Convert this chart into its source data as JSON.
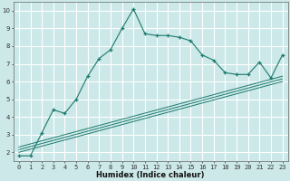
{
  "xlabel": "Humidex (Indice chaleur)",
  "background_color": "#cce8e8",
  "grid_color": "#ffffff",
  "line_color": "#1a7a6e",
  "x_data": [
    0,
    1,
    2,
    3,
    4,
    5,
    6,
    7,
    8,
    9,
    10,
    11,
    12,
    13,
    14,
    15,
    16,
    17,
    18,
    19,
    20,
    21,
    22,
    23
  ],
  "line1_y": [
    1.8,
    1.8,
    3.1,
    4.4,
    4.2,
    5.0,
    6.3,
    7.3,
    7.8,
    9.0,
    10.1,
    8.7,
    8.6,
    8.6,
    8.5,
    8.3,
    7.5,
    7.2,
    6.5,
    6.4,
    6.4,
    7.1,
    6.2,
    7.5
  ],
  "reg_lines": [
    [
      [
        0,
        23
      ],
      [
        2.0,
        6.0
      ]
    ],
    [
      [
        0,
        23
      ],
      [
        2.15,
        6.15
      ]
    ],
    [
      [
        0,
        23
      ],
      [
        2.3,
        6.3
      ]
    ]
  ],
  "ylim": [
    1.5,
    10.5
  ],
  "xlim": [
    -0.5,
    23.5
  ],
  "yticks": [
    2,
    3,
    4,
    5,
    6,
    7,
    8,
    9,
    10
  ],
  "xticks": [
    0,
    1,
    2,
    3,
    4,
    5,
    6,
    7,
    8,
    9,
    10,
    11,
    12,
    13,
    14,
    15,
    16,
    17,
    18,
    19,
    20,
    21,
    22,
    23
  ],
  "xlabel_fontsize": 6,
  "tick_fontsize": 5
}
